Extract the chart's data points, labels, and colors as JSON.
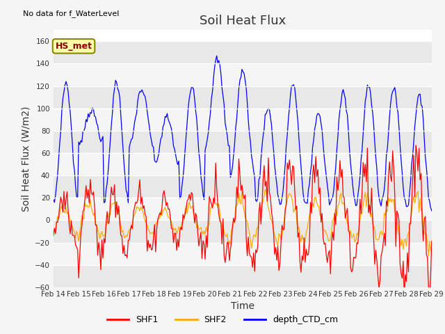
{
  "title": "Soil Heat Flux",
  "xlabel": "Time",
  "ylabel": "Soil Heat Flux (W/m2)",
  "top_left_text": "No data for f_WaterLevel",
  "annotation_box": "HS_met",
  "ylim": [
    -60,
    170
  ],
  "yticks": [
    -60,
    -40,
    -20,
    0,
    20,
    40,
    60,
    80,
    100,
    120,
    140,
    160
  ],
  "xtick_labels": [
    "Feb 14",
    "Feb 15",
    "Feb 16",
    "Feb 17",
    "Feb 18",
    "Feb 19",
    "Feb 20",
    "Feb 21",
    "Feb 22",
    "Feb 23",
    "Feb 24",
    "Feb 25",
    "Feb 26",
    "Feb 27",
    "Feb 28",
    "Feb 29"
  ],
  "legend_entries": [
    "SHF1",
    "SHF2",
    "depth_CTD_cm"
  ],
  "colors": {
    "SHF1": "#ff0000",
    "SHF2": "#ffaa00",
    "depth_CTD_cm": "#0000ff"
  },
  "fig_bg": "#f5f5f5",
  "plot_bg": "#e8e8e8",
  "title_fontsize": 13,
  "axis_label_fontsize": 10
}
